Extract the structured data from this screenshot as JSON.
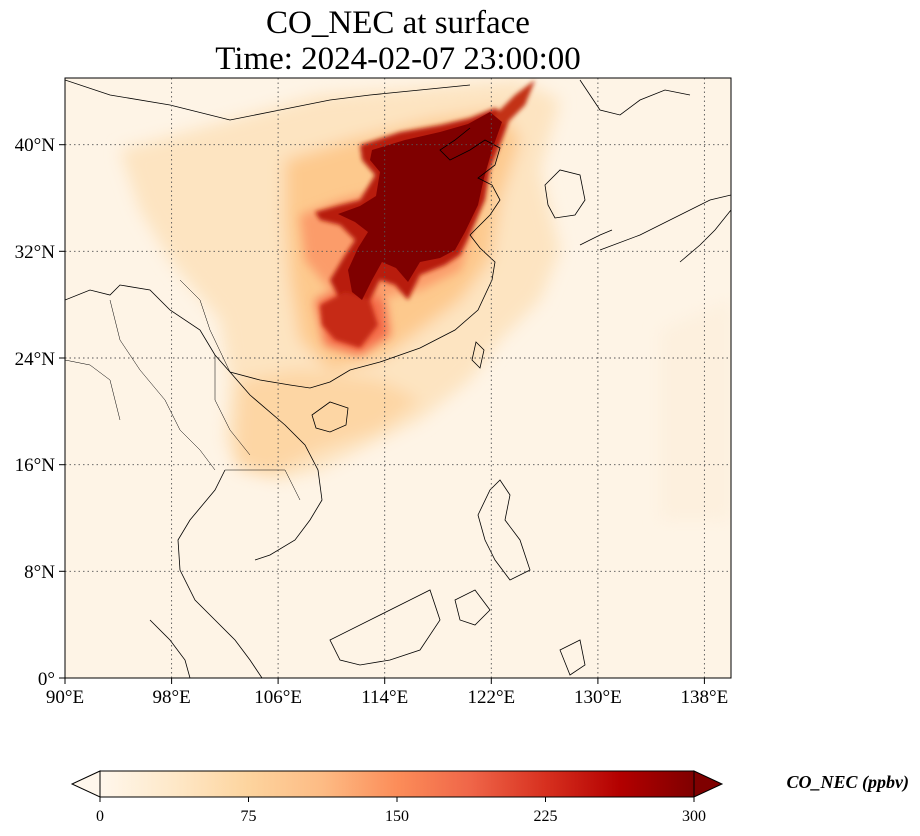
{
  "map": {
    "title_line1": "CO_NEC at surface",
    "title_line2": "Time: 2024-02-07 23:00:00",
    "variable": "CO_NEC",
    "level": "surface",
    "time": "2024-02-07 23:00:00",
    "extent": {
      "lon": [
        90,
        140
      ],
      "lat": [
        0,
        45
      ]
    },
    "x_ticks": [
      "90°E",
      "98°E",
      "106°E",
      "114°E",
      "122°E",
      "130°E",
      "138°E"
    ],
    "y_ticks": [
      "0°",
      "8°N",
      "16°N",
      "24°N",
      "32°N",
      "40°N"
    ],
    "gridlines": true,
    "gridline_style": "dotted"
  },
  "colorbar": {
    "label": "CO_NEC (ppbv)",
    "ticks": [
      "0",
      "75",
      "150",
      "225",
      "300"
    ],
    "range": [
      0,
      300
    ],
    "extend": "both",
    "colormap": "OrRd",
    "colors": [
      "#fff7ec",
      "#fee8c8",
      "#fdd49e",
      "#fdbb84",
      "#fc8d59",
      "#ef6548",
      "#d7301f",
      "#b30000",
      "#7f0000"
    ]
  }
}
